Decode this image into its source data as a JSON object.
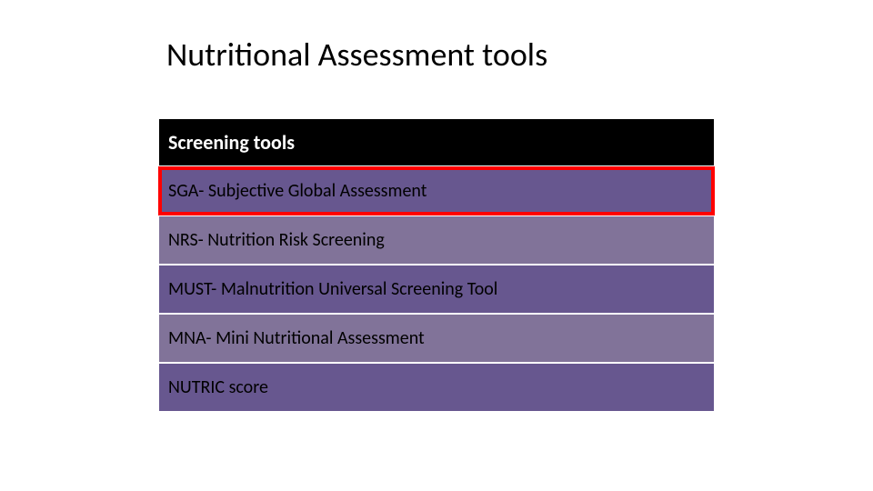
{
  "title": "Nutritional Assessment tools",
  "table": {
    "header": "Screening tools",
    "rows": [
      {
        "label": "SGA- Subjective Global Assessment",
        "highlighted": true
      },
      {
        "label": "NRS- Nutrition Risk Screening",
        "highlighted": false
      },
      {
        "label": "MUST- Malnutrition Universal Screening Tool",
        "highlighted": false
      },
      {
        "label": "MNA- Mini Nutritional Assessment",
        "highlighted": false
      },
      {
        "label": "NUTRIC score",
        "highlighted": false
      }
    ],
    "header_bg": "#000000",
    "header_fg": "#ffffff",
    "row_bg_odd": "#67578f",
    "row_bg_even": "#817399",
    "highlight_color": "#ff0000",
    "border_color": "#ffffff"
  },
  "title_fontsize": 36,
  "header_fontsize": 22,
  "row_fontsize": 20
}
